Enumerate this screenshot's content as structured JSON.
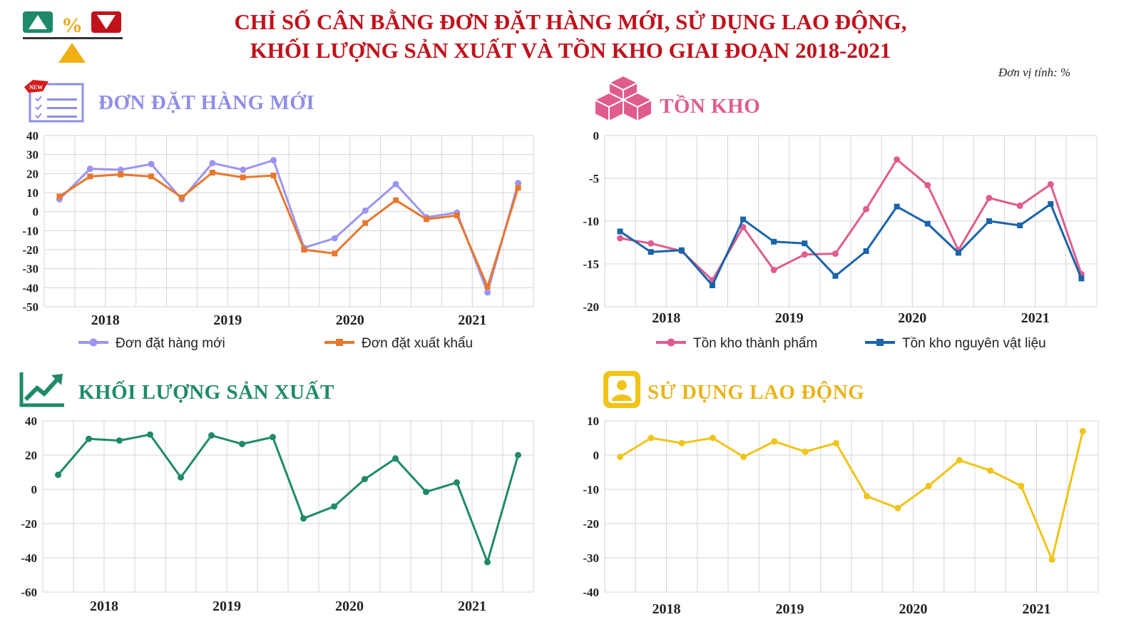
{
  "title_line1": "CHỈ SỐ CÂN BẰNG ĐƠN ĐẶT HÀNG MỚI, SỬ DỤNG LAO ĐỘNG,",
  "title_line2": "KHỐI LƯỢNG SẢN XUẤT VÀ TỒN KHO GIAI ĐOẠN 2018-2021",
  "unit": "Đơn vị tính: %",
  "icons": {
    "header": "up-percent-down-icon",
    "orders": "new-order-list-icon",
    "inventory": "boxes-icon",
    "production": "trend-up-icon",
    "labor": "person-icon"
  },
  "chart_data": [
    {
      "panel": "orders",
      "type": "line",
      "title": "ĐƠN ĐẶT HÀNG MỚI",
      "title_color": "#8f8ee6",
      "year_labels": [
        "2018",
        "2019",
        "2020",
        "2021"
      ],
      "ylim": [
        -50,
        40
      ],
      "yticks": [
        40,
        30,
        20,
        10,
        0,
        -10,
        -20,
        -30,
        -40,
        -50
      ],
      "grid": true,
      "legend_position": "bottom",
      "series": [
        {
          "name": "Đơn đặt hàng mới",
          "color": "#9b95f0",
          "marker": "circle",
          "values": [
            6.5,
            22.5,
            22,
            25,
            6.5,
            25.5,
            22,
            27,
            -19,
            -14,
            0.5,
            14.5,
            -3,
            -0.5,
            -42.5,
            15
          ]
        },
        {
          "name": "Đơn đặt xuất khẩu",
          "color": "#e8772e",
          "marker": "square",
          "values": [
            8,
            18.5,
            19.5,
            18.5,
            7.5,
            20.5,
            18,
            19,
            -20,
            -22,
            -6,
            6,
            -4,
            -2,
            -39.5,
            12.5
          ]
        }
      ]
    },
    {
      "panel": "inventory",
      "type": "line",
      "title": "TỒN KHO",
      "title_color": "#e05c8f",
      "year_labels": [
        "2018",
        "2019",
        "2020",
        "2021"
      ],
      "ylim": [
        -20,
        0
      ],
      "yticks": [
        0,
        -5,
        -10,
        -15,
        -20
      ],
      "grid": true,
      "legend_position": "bottom",
      "series": [
        {
          "name": "Tồn kho thành phẩm",
          "color": "#e05c8f",
          "marker": "circle",
          "values": [
            -12,
            -12.6,
            -13.5,
            -16.9,
            -10.7,
            -15.7,
            -13.9,
            -13.8,
            -8.6,
            -2.8,
            -5.8,
            -13.4,
            -7.3,
            -8.2,
            -5.7,
            -16.2
          ]
        },
        {
          "name": "Tồn kho nguyên vật liệu",
          "color": "#1a64a8",
          "marker": "square",
          "values": [
            -11.2,
            -13.6,
            -13.4,
            -17.5,
            -9.8,
            -12.4,
            -12.6,
            -16.4,
            -13.5,
            -8.3,
            -10.3,
            -13.7,
            -10,
            -10.5,
            -8,
            -16.7
          ]
        }
      ]
    },
    {
      "panel": "production",
      "type": "line",
      "title": "KHỐI LƯỢNG SẢN XUẤT",
      "title_color": "#1e8a6a",
      "year_labels": [
        "2018",
        "2019",
        "2020",
        "2021"
      ],
      "ylim": [
        -60,
        40
      ],
      "yticks": [
        40,
        20,
        0,
        -20,
        -40,
        -60
      ],
      "grid": true,
      "series": [
        {
          "name": "",
          "color": "#1e8a6a",
          "marker": "circle",
          "values": [
            8.5,
            29.5,
            28.5,
            32,
            7,
            31.5,
            26.5,
            30.5,
            -17,
            -10,
            6,
            18,
            -1.5,
            4,
            -42.5,
            20
          ]
        }
      ]
    },
    {
      "panel": "labor",
      "type": "line",
      "title": "SỬ DỤNG LAO ĐỘNG",
      "title_color": "#e8b41c",
      "year_labels": [
        "2018",
        "2019",
        "2020",
        "2021"
      ],
      "ylim": [
        -40,
        10
      ],
      "yticks": [
        10,
        0,
        -10,
        -20,
        -30,
        -40
      ],
      "grid": true,
      "series": [
        {
          "name": "",
          "color": "#f0c419",
          "marker": "circle",
          "values": [
            -0.5,
            5,
            3.5,
            5,
            -0.5,
            4,
            1,
            3.5,
            -12,
            -15.5,
            -9,
            -1.5,
            -4.5,
            -9,
            -30.5,
            7
          ]
        }
      ]
    }
  ]
}
